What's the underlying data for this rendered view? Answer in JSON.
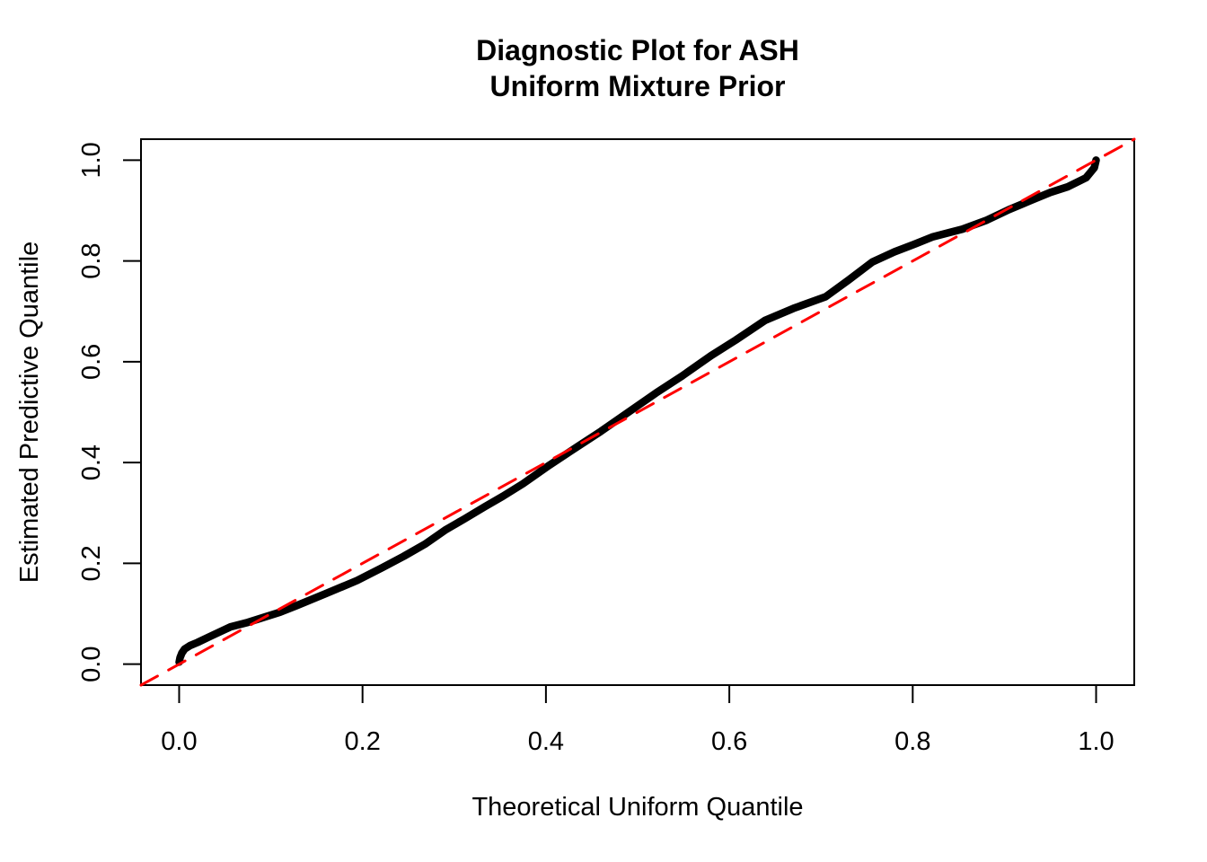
{
  "chart_data": {
    "type": "line",
    "title_line1": "Diagnostic Plot for ASH",
    "title_line2": "Uniform Mixture Prior",
    "xlabel": "Theoretical Uniform Quantile",
    "ylabel": "Estimated Predictive Quantile",
    "xlim": [
      -0.0416,
      1.0416
    ],
    "ylim": [
      -0.0416,
      1.0416
    ],
    "x_ticks": [
      0.0,
      0.2,
      0.4,
      0.6,
      0.8,
      1.0
    ],
    "x_tick_labels": [
      "0.0",
      "0.2",
      "0.4",
      "0.6",
      "0.8",
      "1.0"
    ],
    "y_ticks": [
      0.0,
      0.2,
      0.4,
      0.6,
      0.8,
      1.0
    ],
    "y_tick_labels": [
      "0.0",
      "0.2",
      "0.4",
      "0.6",
      "0.8",
      "1.0"
    ],
    "grid": false,
    "legend": "none",
    "background_color": "#FFFFFF",
    "axis_color": "#000000",
    "series": [
      {
        "name": "estimated-vs-theoretical-quantile-curve",
        "color": "#000000",
        "line_style": "solid",
        "line_width": 8.5,
        "points": [
          [
            0.0,
            0.004
          ],
          [
            0.001,
            0.013
          ],
          [
            0.003,
            0.022
          ],
          [
            0.006,
            0.03
          ],
          [
            0.012,
            0.037
          ],
          [
            0.02,
            0.043
          ],
          [
            0.035,
            0.056
          ],
          [
            0.056,
            0.074
          ],
          [
            0.075,
            0.083
          ],
          [
            0.094,
            0.094
          ],
          [
            0.11,
            0.103
          ],
          [
            0.128,
            0.116
          ],
          [
            0.16,
            0.14
          ],
          [
            0.194,
            0.166
          ],
          [
            0.22,
            0.19
          ],
          [
            0.245,
            0.214
          ],
          [
            0.268,
            0.238
          ],
          [
            0.291,
            0.267
          ],
          [
            0.311,
            0.288
          ],
          [
            0.333,
            0.312
          ],
          [
            0.353,
            0.333
          ],
          [
            0.375,
            0.358
          ],
          [
            0.404,
            0.395
          ],
          [
            0.434,
            0.431
          ],
          [
            0.46,
            0.462
          ],
          [
            0.49,
            0.5
          ],
          [
            0.52,
            0.538
          ],
          [
            0.548,
            0.571
          ],
          [
            0.58,
            0.612
          ],
          [
            0.607,
            0.643
          ],
          [
            0.639,
            0.682
          ],
          [
            0.67,
            0.706
          ],
          [
            0.705,
            0.729
          ],
          [
            0.73,
            0.762
          ],
          [
            0.756,
            0.798
          ],
          [
            0.78,
            0.818
          ],
          [
            0.803,
            0.834
          ],
          [
            0.822,
            0.848
          ],
          [
            0.854,
            0.863
          ],
          [
            0.881,
            0.881
          ],
          [
            0.905,
            0.902
          ],
          [
            0.93,
            0.921
          ],
          [
            0.95,
            0.936
          ],
          [
            0.969,
            0.947
          ],
          [
            0.989,
            0.965
          ],
          [
            0.998,
            0.985
          ],
          [
            1.0,
            1.0
          ]
        ]
      },
      {
        "name": "diagonal-reference-line",
        "color": "#FF0000",
        "line_style": "dashed",
        "line_width": 3,
        "points": [
          [
            -0.0416,
            -0.0416
          ],
          [
            1.0416,
            1.0416
          ]
        ]
      }
    ]
  }
}
